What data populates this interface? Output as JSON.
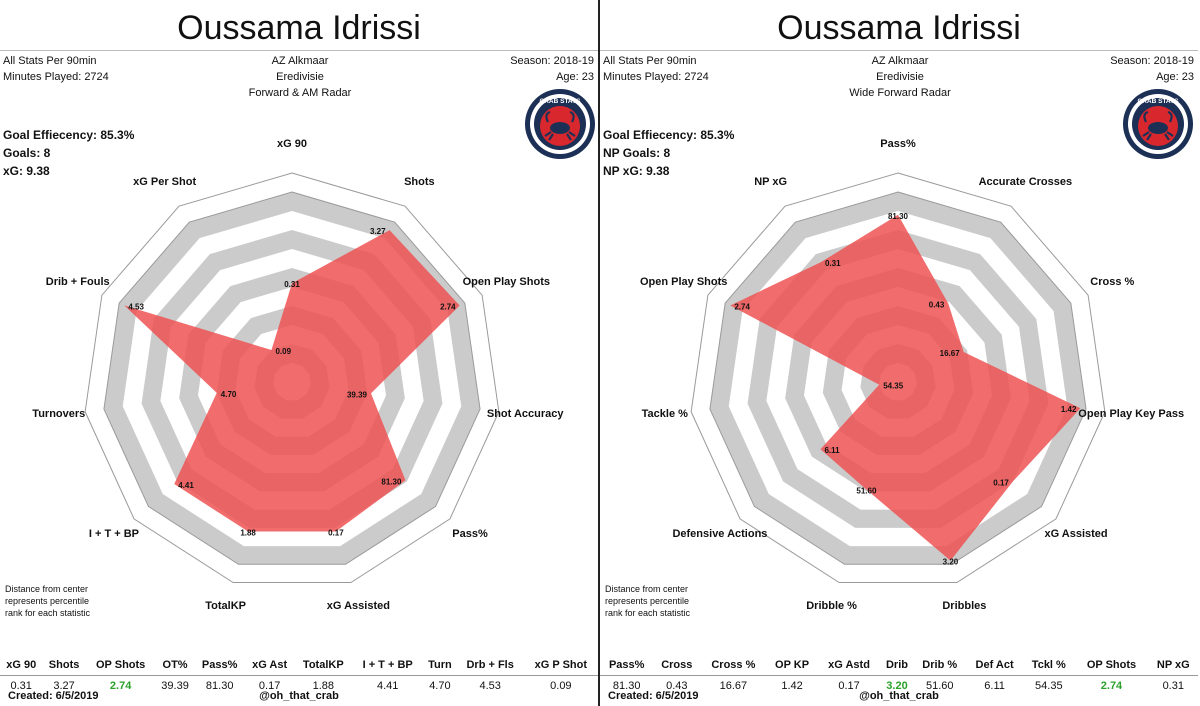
{
  "colors": {
    "polygon": "#ee5252",
    "ring_dark": "#cbcbcb",
    "ring_light": "#ffffff",
    "highlight": "#2aa12a",
    "logo_outer": "#1c2f55",
    "logo_inner": "#d8282e"
  },
  "left": {
    "title": "Oussama Idrissi",
    "hdr_left": [
      "All Stats Per 90min",
      "Minutes Played: 2724"
    ],
    "hdr_center": [
      "AZ Alkmaar",
      "Eredivisie",
      "Forward & AM Radar"
    ],
    "hdr_right": [
      "Season: 2018-19",
      "Age: 23"
    ],
    "stat_block": [
      "Goal Effiecency: 85.3%",
      "Goals: 8",
      "xG: 9.38"
    ],
    "logo_text": "CRAB STATS",
    "footnote": [
      "Distance from center",
      "represents percentile",
      "rank for each statistic"
    ],
    "table_headers": [
      "xG 90",
      "Shots",
      "OP Shots",
      "OT%",
      "Pass%",
      "xG Ast",
      "TotalKP",
      "I + T + BP",
      "Turn",
      "Drb + Fls",
      "xG P Shot"
    ],
    "table_values": [
      "0.31",
      "3.27",
      "2.74",
      "39.39",
      "81.30",
      "0.17",
      "1.88",
      "4.41",
      "4.70",
      "4.53",
      "0.09"
    ],
    "highlight_index": 2,
    "created": "Created:  6/5/2019",
    "handle": "@oh_that_crab"
  },
  "right": {
    "title": "Oussama Idrissi",
    "hdr_left": [
      "All Stats Per 90min",
      "Minutes Played: 2724"
    ],
    "hdr_center": [
      "AZ Alkmaar",
      "Eredivisie",
      "Wide Forward Radar"
    ],
    "hdr_right": [
      "Season: 2018-19",
      "Age: 23"
    ],
    "stat_block": [
      "Goal Effiecency: 85.3%",
      "NP Goals: 8",
      "NP xG: 9.38"
    ],
    "logo_text": "CRAB STATS",
    "footnote": [
      "Distance from center",
      "represents percentile",
      "rank for each statistic"
    ],
    "table_headers": [
      "Pass%",
      "Cross",
      "Cross %",
      "OP KP",
      "xG Astd",
      "Drib",
      "Drib %",
      "Def Act",
      "Tckl %",
      "OP Shots",
      "NP xG"
    ],
    "table_values": [
      "81.30",
      "0.43",
      "16.67",
      "1.42",
      "0.17",
      "3.20",
      "51.60",
      "6.11",
      "54.35",
      "2.74",
      "0.31"
    ],
    "highlight_indices": [
      5,
      9
    ],
    "created": "Created:  6/5/2019",
    "handle": "@oh_that_crab"
  },
  "chart_data": [
    {
      "type": "radar",
      "title": "Forward & AM Radar",
      "axes": [
        "xG 90",
        "Shots",
        "Open Play Shots",
        "Shot Accuracy",
        "Pass%",
        "xG Assisted",
        "TotalKP",
        "I + T + BP",
        "Turnovers",
        "Drib + Fouls",
        "xG Per Shot"
      ],
      "value_labels": [
        "0.31",
        "3.27",
        "2.74",
        "39.39",
        "81.30",
        "0.17",
        "1.88",
        "4.41",
        "4.70",
        "4.53",
        "0.09"
      ],
      "percentiles": [
        0.52,
        0.95,
        0.97,
        0.42,
        0.79,
        0.82,
        0.82,
        0.82,
        0.4,
        0.97,
        0.2
      ],
      "rings": 10
    },
    {
      "type": "radar",
      "title": "Wide Forward Radar",
      "axes": [
        "Pass%",
        "Accurate Crosses",
        "Cross %",
        "Open Play Key Pass",
        "xG Assisted",
        "Dribbles",
        "Dribble %",
        "Defensive Actions",
        "Tackle %",
        "Open Play Shots",
        "NP xG"
      ],
      "value_labels": [
        "81.30",
        "0.43",
        "16.67",
        "1.42",
        "0.17",
        "3.20",
        "51.60",
        "6.11",
        "54.35",
        "2.74",
        "0.31"
      ],
      "percentiles": [
        0.88,
        0.49,
        0.38,
        0.97,
        0.8,
        0.98,
        0.59,
        0.54,
        0.1,
        0.97,
        0.75
      ],
      "rings": 10
    }
  ]
}
